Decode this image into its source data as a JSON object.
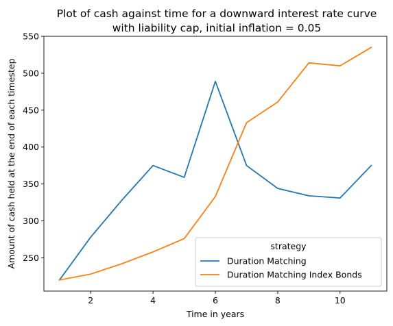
{
  "chart_data": {
    "type": "line",
    "title_lines": [
      "Plot of cash against time for a downward interest rate curve",
      "with liability cap, initial inflation = 0.05"
    ],
    "xlabel": "Time in years",
    "ylabel": "Amount of cash held at the end of each timestep",
    "xlim": [
      0.5,
      11.5
    ],
    "ylim": [
      205,
      550
    ],
    "xticks": [
      2,
      4,
      6,
      8,
      10
    ],
    "yticks": [
      250,
      300,
      350,
      400,
      450,
      500,
      550
    ],
    "grid": false,
    "legend": {
      "title": "strategy",
      "placement": "lower-right"
    },
    "x": [
      1,
      2,
      3,
      4,
      5,
      6,
      7,
      8,
      9,
      10,
      11
    ],
    "series": [
      {
        "name": "Duration Matching",
        "color": "#1f77b4",
        "values": [
          220,
          278,
          328,
          375,
          359,
          489,
          375,
          344,
          334,
          331,
          375
        ]
      },
      {
        "name": "Duration Matching Index Bonds",
        "color": "#ff7f0e",
        "values": [
          220,
          228,
          242,
          258,
          276,
          333,
          433,
          461,
          514,
          510,
          535
        ]
      }
    ]
  }
}
